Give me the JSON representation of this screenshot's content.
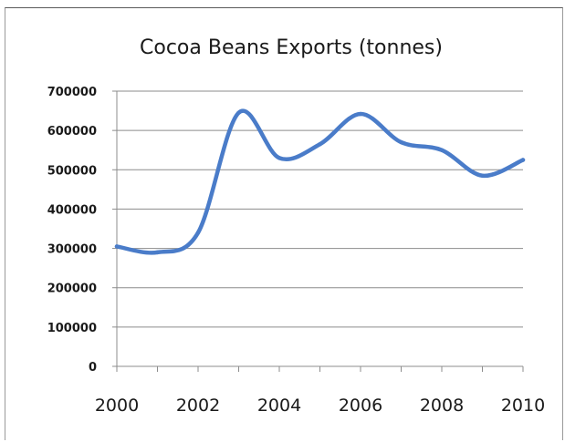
{
  "chart_data": {
    "type": "line",
    "title": "Cocoa Beans Exports (tonnes)",
    "xlabel": "",
    "ylabel": "",
    "x": [
      2000,
      2001,
      2002,
      2003,
      2004,
      2005,
      2006,
      2007,
      2008,
      2009,
      2010
    ],
    "series": [
      {
        "values": [
          305000,
          290000,
          340000,
          645000,
          530000,
          565000,
          642000,
          570000,
          550000,
          485000,
          525000
        ],
        "color": "#4a7cc9"
      }
    ],
    "xlim": [
      2000,
      2010
    ],
    "ylim": [
      0,
      700000
    ],
    "yticks": [
      0,
      100000,
      200000,
      300000,
      400000,
      500000,
      600000,
      700000
    ],
    "ytick_labels": [
      "0",
      "100000",
      "200000",
      "300000",
      "400000",
      "500000",
      "600000",
      "700000"
    ],
    "xticks": [
      2000,
      2002,
      2004,
      2006,
      2008,
      2010
    ],
    "xtick_labels": [
      "2000",
      "2002",
      "2004",
      "2006",
      "2008",
      "2010"
    ],
    "grid": true,
    "gridline_color": "#8c8c8c",
    "axis_color": "#8c8c8c",
    "legend": "none"
  }
}
